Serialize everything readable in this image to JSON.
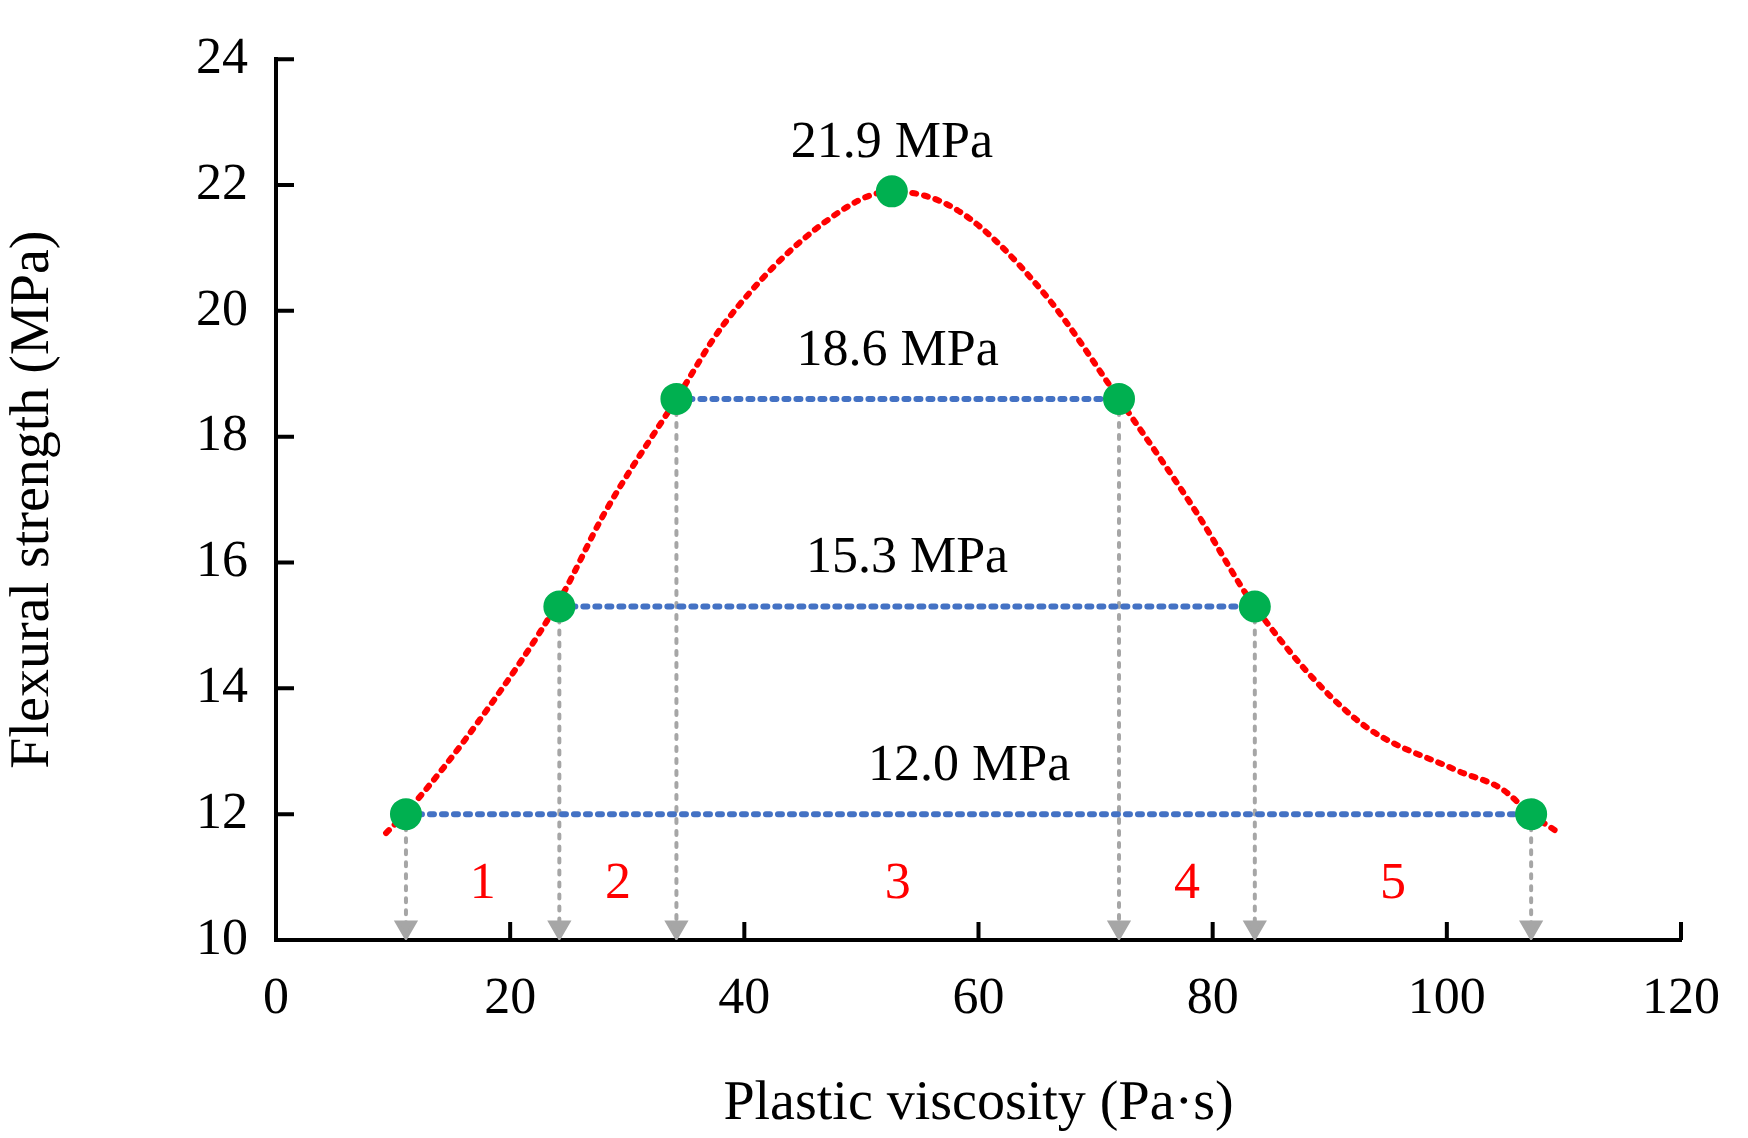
{
  "chart_data": {
    "type": "line",
    "xlabel": "Plastic viscosity (Pa·s)",
    "ylabel": "Flexural strength (MPa)",
    "xlim": [
      0,
      120
    ],
    "xticks": [
      0,
      20,
      40,
      60,
      80,
      100,
      120
    ],
    "ylim": [
      10,
      24
    ],
    "yticks": [
      10,
      12,
      14,
      16,
      18,
      20,
      22,
      24
    ],
    "grid": false,
    "legend": false,
    "series": [
      {
        "type": "line",
        "color": "#ff0000",
        "line_style": "dotted",
        "marker": "none",
        "x": [
          9.4,
          11,
          17.4,
          24.2,
          28.1,
          34.2,
          38.3,
          46.8,
          52.6,
          58.2,
          65.5,
          72,
          78.6,
          83.6,
          92.3,
          100.8,
          104.7,
          107.2,
          109.6
        ],
        "values": [
          11.7,
          12.0,
          13.5,
          15.4,
          16.8,
          18.6,
          19.8,
          21.4,
          21.9,
          21.6,
          20.3,
          18.6,
          16.8,
          15.3,
          13.5,
          12.7,
          12.4,
          12.0,
          11.7
        ]
      },
      {
        "type": "line",
        "color": "#4472c4",
        "line_style": "dotted",
        "marker": "none",
        "x": [
          11.1,
          107.2
        ],
        "values": [
          12.0,
          12.0
        ]
      },
      {
        "type": "line",
        "color": "#4472c4",
        "line_style": "dotted",
        "marker": "none",
        "x": [
          24.2,
          83.6
        ],
        "values": [
          15.3,
          15.3
        ]
      },
      {
        "type": "line",
        "color": "#4472c4",
        "line_style": "dotted",
        "marker": "none",
        "x": [
          34.2,
          72
        ],
        "values": [
          18.6,
          18.6
        ]
      },
      {
        "type": "line",
        "color": "#a6a6a6",
        "line_style": "dotted",
        "marker": "triangle",
        "x": [
          11.1,
          11.1
        ],
        "values": [
          12.0,
          10.2
        ]
      },
      {
        "type": "line",
        "color": "#a6a6a6",
        "line_style": "dotted",
        "marker": "triangle",
        "x": [
          24.2,
          24.2
        ],
        "values": [
          15.3,
          10.2
        ]
      },
      {
        "type": "line",
        "color": "#a6a6a6",
        "line_style": "dotted",
        "marker": "triangle",
        "x": [
          34.2,
          34.2
        ],
        "values": [
          18.6,
          10.2
        ]
      },
      {
        "type": "line",
        "color": "#a6a6a6",
        "line_style": "dotted",
        "marker": "triangle",
        "x": [
          72,
          72
        ],
        "values": [
          18.6,
          10.2
        ]
      },
      {
        "type": "line",
        "color": "#a6a6a6",
        "line_style": "dotted",
        "marker": "triangle",
        "x": [
          83.6,
          83.6
        ],
        "values": [
          15.3,
          10.2
        ]
      },
      {
        "type": "line",
        "color": "#a6a6a6",
        "line_style": "dotted",
        "marker": "triangle",
        "x": [
          107.2,
          107.2
        ],
        "values": [
          12.0,
          10.2
        ]
      },
      {
        "type": "scatter",
        "color": "#00b050",
        "marker": "circle",
        "x": [
          11.1,
          24.2,
          34.2,
          52.6,
          72,
          83.6,
          107.2
        ],
        "values": [
          12.0,
          15.3,
          18.6,
          21.9,
          18.6,
          15.3,
          12.0
        ]
      }
    ],
    "annotations": [
      {
        "text": "21.9 MPa",
        "x": 52.6,
        "y": 21.9
      },
      {
        "text": "18.6 MPa",
        "x": 53.1,
        "y": 18.6
      },
      {
        "text": "15.3 MPa",
        "x": 53.9,
        "y": 15.3
      },
      {
        "text": "12.0 MPa",
        "x": 59.2,
        "y": 12.0
      },
      "1",
      "2",
      "3",
      "4",
      "5"
    ]
  }
}
